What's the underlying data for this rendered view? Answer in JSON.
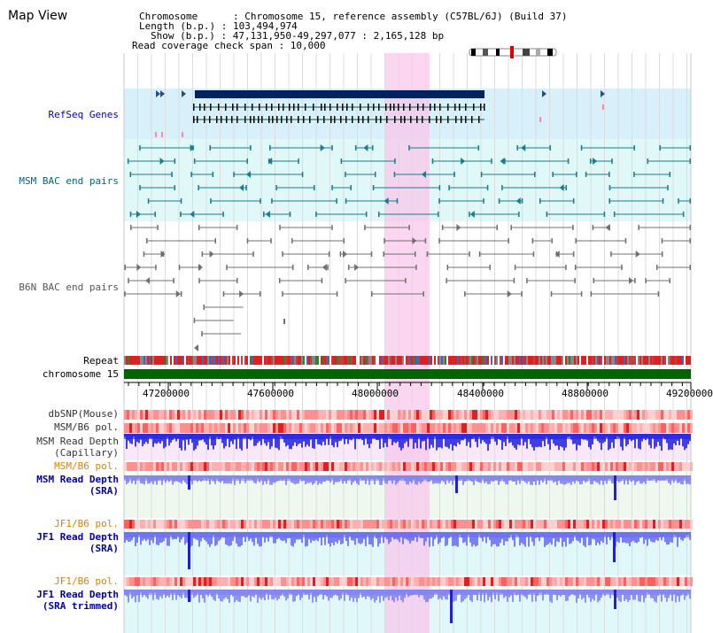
{
  "view_title": "Map View",
  "header": {
    "chromosome": "Chromosome      : Chromosome 15, reference assembly (C57BL/6J) (Build 37)",
    "length": "Length (b.p.) : 103,494,974",
    "show": "Show (b.p.) : 47,131,950-49,297,077 : 2,165,128 bp",
    "coverage": "Read coverage check span : 10,000"
  },
  "tracks": {
    "refseq": "RefSeq Genes",
    "msm_bac": "MSM BAC end pairs",
    "b6n_bac": "B6N BAC end pairs",
    "repeat": "Repeat",
    "chromosome": "chromosome 15",
    "dbsnp": "dbSNP(Mouse)",
    "msm_b6_pol_1": "MSM/B6 pol.",
    "msm_read_depth_cap_1": "MSM Read Depth",
    "msm_read_depth_cap_2": "(Capillary)",
    "msm_b6_pol_2": "MSM/B6 pol.",
    "msm_read_depth_sra_1": "MSM Read Depth",
    "msm_read_depth_sra_2": "(SRA)",
    "jf1_b6_pol_1": "JF1/B6 pol.",
    "jf1_read_depth_sra_1": "JF1 Read Depth",
    "jf1_read_depth_sra_2": "(SRA)",
    "jf1_b6_pol_2": "JF1/B6 pol.",
    "jf1_read_depth_trim_1": "JF1 Read Depth",
    "jf1_read_depth_trim_2": "(SRA trimmed)"
  },
  "axis": {
    "ticks": [
      "47200000",
      "47600000",
      "48000000",
      "48400000",
      "48800000",
      "49200000"
    ]
  },
  "colors": {
    "refseq_label": "#0000cc",
    "msm_label": "#006680",
    "b6n_label": "#555555",
    "pol_label": "#e08000",
    "depth_label": "#0000aa",
    "highlight": "#f8c8ec",
    "refseq_bg": "#d8f0fa",
    "msm_bg": "#e0f8f8",
    "chromosome_bar": "#006400"
  }
}
